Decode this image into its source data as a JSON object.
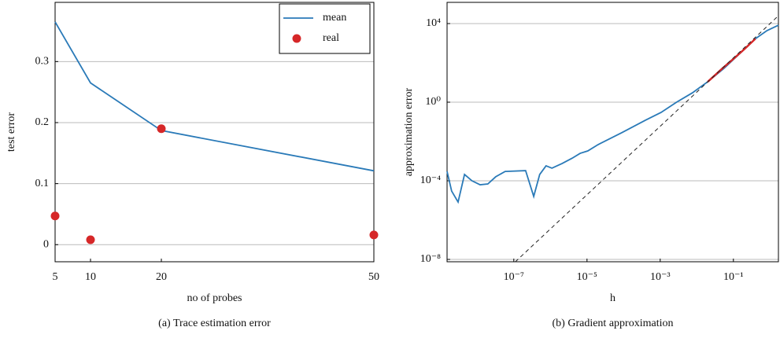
{
  "chart_data": [
    {
      "type": "line",
      "caption": "(a) Trace estimation error",
      "xlabel": "no of probes",
      "ylabel": "test error",
      "x": [
        5,
        10,
        20,
        50
      ],
      "series": [
        {
          "name": "mean",
          "color": "#2a7ab8",
          "values": [
            0.365,
            0.265,
            0.187,
            0.121
          ]
        },
        {
          "name": "real",
          "color": "#d62728",
          "mode": "markers",
          "values": [
            0.047,
            0.008,
            0.19,
            0.016
          ]
        }
      ],
      "xlim": [
        5,
        50
      ],
      "ylim": [
        -0.028,
        0.397
      ],
      "xticks": [
        5,
        10,
        20,
        50
      ],
      "yticks": [
        0,
        0.1,
        0.2,
        0.3
      ],
      "grid": true,
      "legend": "upper right"
    },
    {
      "type": "line",
      "caption": "(b) Gradient approximation",
      "xlabel": "h",
      "ylabel": "approximation error",
      "xscale": "log",
      "yscale": "log",
      "series": [
        {
          "color": "#2a7ab8",
          "x": [
            1.5e-09,
            2e-09,
            3e-09,
            4.5e-09,
            7.2e-09,
            1.2e-08,
            1.95e-08,
            3.2e-08,
            5.8e-08,
            2.1e-07,
            3.5e-07,
            5.1e-07,
            7.6e-07,
            1.1e-06,
            2.1e-06,
            3.9e-06,
            6.5e-06,
            1.05e-05,
            2e-05,
            8.9e-05,
            0.00039,
            0.00105,
            0.0028,
            0.0076,
            0.02,
            0.055,
            0.15,
            0.4,
            0.83,
            1.7
          ],
          "values": [
            0.0003,
            3e-05,
            8.3e-06,
            0.00021,
            0.0001,
            6.3e-05,
            6.9e-05,
            0.00016,
            0.0003,
            0.00033,
            1.6e-05,
            0.00021,
            0.00058,
            0.00044,
            0.00076,
            0.0014,
            0.0025,
            0.0033,
            0.0069,
            0.028,
            0.12,
            0.3,
            1,
            3.0,
            11,
            52,
            300,
            1700,
            4400,
            8300
          ]
        },
        {
          "color": "#d62728",
          "width": 2.5,
          "x": [
            0.02,
            0.05,
            0.1,
            0.2,
            0.4
          ],
          "values": [
            11,
            52,
            160,
            500,
            1700
          ]
        },
        {
          "color": "#222222",
          "dash": true,
          "x": [
            1.1e-07,
            1.7
          ],
          "values": [
            7.6e-09,
            25000
          ]
        }
      ],
      "xlim": [
        1.5e-09,
        1.7
      ],
      "ylim": [
        7.6e-09,
        120000
      ],
      "xticks": [
        {
          "value": 1e-07,
          "label": "10⁻⁷"
        },
        {
          "value": 1e-05,
          "label": "10⁻⁵"
        },
        {
          "value": 0.001,
          "label": "10⁻³"
        },
        {
          "value": 0.1,
          "label": "10⁻¹"
        }
      ],
      "yticks": [
        {
          "value": 1e-08,
          "label": "10⁻⁸"
        },
        {
          "value": 0.0001,
          "label": "10⁻⁴"
        },
        {
          "value": 1,
          "label": "10⁰"
        },
        {
          "value": 10000,
          "label": "10⁴"
        }
      ],
      "grid": true
    }
  ]
}
